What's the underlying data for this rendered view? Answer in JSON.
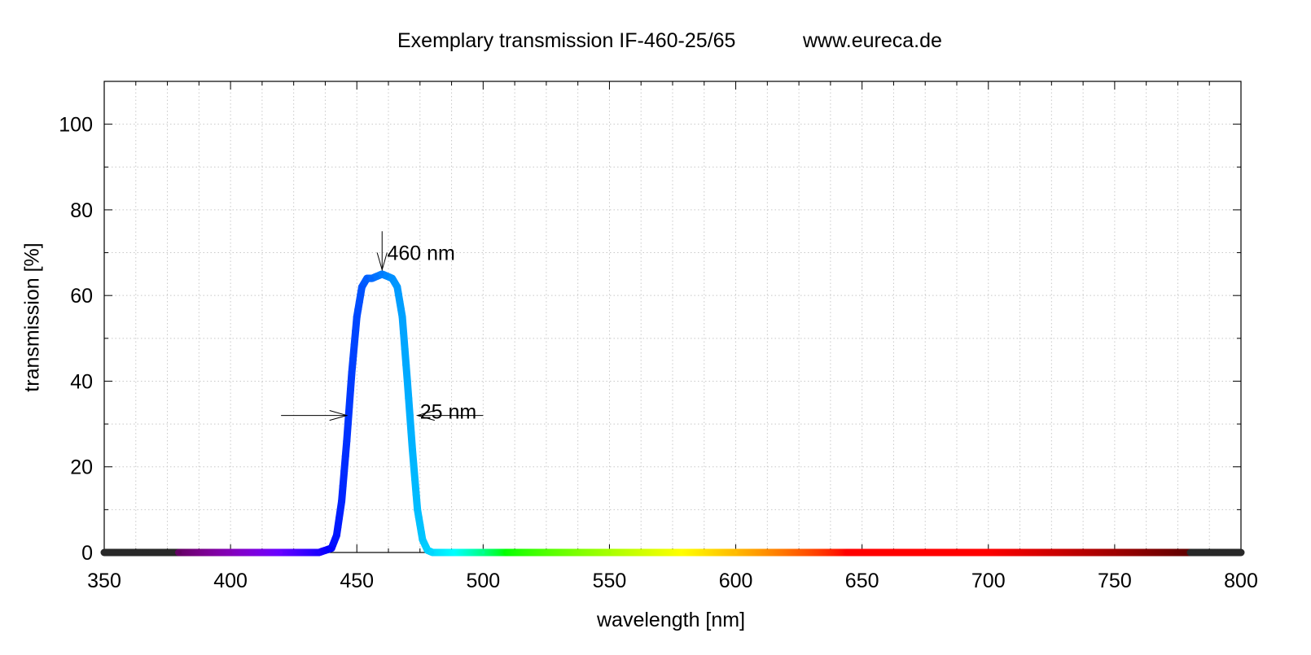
{
  "chart_data": {
    "type": "line",
    "title": "Exemplary transmission IF-460-25/65",
    "title_url": "www.eureca.de",
    "xlabel": "wavelength [nm]",
    "ylabel": "transmission [%]",
    "xlim": [
      350,
      800
    ],
    "ylim": [
      0,
      110
    ],
    "x_ticks": [
      350,
      400,
      450,
      500,
      550,
      600,
      650,
      700,
      750,
      800
    ],
    "y_ticks": [
      0,
      20,
      40,
      60,
      80,
      100
    ],
    "x_minor_step": 12.5,
    "y_minor_step": 10,
    "grid": true,
    "legend": "none",
    "series": [
      {
        "x": [
          350,
          380,
          400,
          420,
          435,
          440,
          442,
          444,
          446,
          448,
          450,
          452,
          454,
          456,
          458,
          460,
          462,
          464,
          466,
          468,
          470,
          472,
          474,
          476,
          478,
          480,
          500,
          550,
          600,
          650,
          700,
          750,
          800
        ],
        "y": [
          0,
          0,
          0,
          0,
          0,
          1,
          4,
          12,
          26,
          42,
          55,
          62,
          64,
          64,
          64.5,
          65,
          64.5,
          64,
          62,
          55,
          40,
          24,
          10,
          3,
          0.5,
          0,
          0,
          0,
          0,
          0,
          0,
          0,
          0
        ],
        "color_mode": "wavelength"
      }
    ],
    "annotations": [
      {
        "text": "460 nm",
        "arrow_x": 460,
        "arrow_from_y": 75,
        "arrow_to_y": 66,
        "label_x": 462,
        "label_y": 70
      },
      {
        "text": "25 nm",
        "label_x": 475,
        "label_y": 33,
        "arrows": [
          {
            "from_x": 420,
            "to_x": 446,
            "y": 32
          },
          {
            "from_x": 500,
            "to_x": 474,
            "y": 32
          }
        ]
      }
    ]
  }
}
